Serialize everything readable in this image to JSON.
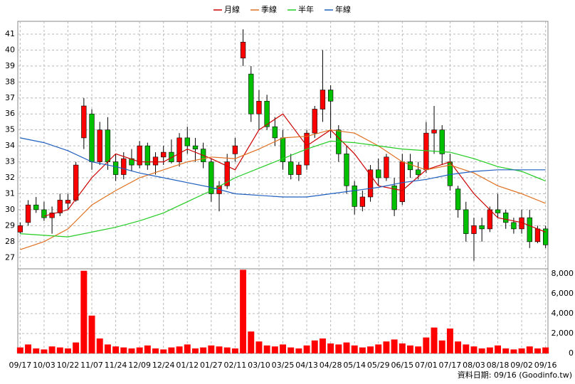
{
  "chart_data": {
    "type": "candlestick",
    "grid": true,
    "legend_position": "top",
    "up_color": "#ff0000",
    "down_color": "#00c000",
    "volume_color": "#ff0000",
    "footnote": "資料日期: 09/16  (Goodinfo.tw)",
    "xlim": [
      -0.3,
      66.3
    ],
    "xticks": [
      {
        "value": 0,
        "label": "09/17"
      },
      {
        "value": 3,
        "label": "10/03"
      },
      {
        "value": 6,
        "label": "10/22"
      },
      {
        "value": 9,
        "label": "11/07"
      },
      {
        "value": 12,
        "label": "11/24"
      },
      {
        "value": 15,
        "label": "12/09"
      },
      {
        "value": 18,
        "label": "12/24"
      },
      {
        "value": 21,
        "label": "01/12"
      },
      {
        "value": 24,
        "label": "01/27"
      },
      {
        "value": 27,
        "label": "02/11"
      },
      {
        "value": 30,
        "label": "03/10"
      },
      {
        "value": 33,
        "label": "03/25"
      },
      {
        "value": 36,
        "label": "04/13"
      },
      {
        "value": 39,
        "label": "04/28"
      },
      {
        "value": 42,
        "label": "05/14"
      },
      {
        "value": 45,
        "label": "05/29"
      },
      {
        "value": 48,
        "label": "06/15"
      },
      {
        "value": 51,
        "label": "07/01"
      },
      {
        "value": 54,
        "label": "07/17"
      },
      {
        "value": 57,
        "label": "08/03"
      },
      {
        "value": 60,
        "label": "08/18"
      },
      {
        "value": 63,
        "label": "09/02"
      },
      {
        "value": 66,
        "label": "09/16"
      }
    ],
    "ylim": [
      26.3,
      41.8
    ],
    "yticks": [
      27,
      28,
      29,
      30,
      31,
      32,
      33,
      34,
      35,
      36,
      37,
      38,
      39,
      40,
      41
    ],
    "y2lim": [
      0,
      8500
    ],
    "y2ticks": [
      0,
      {
        "value": 2000,
        "label": "2,000"
      },
      {
        "value": 4000,
        "label": "4,000"
      },
      {
        "value": 6000,
        "label": "6,000"
      },
      {
        "value": 8000,
        "label": "8,000"
      }
    ],
    "open": [
      28.6,
      29.2,
      30.3,
      30.0,
      29.5,
      29.8,
      30.4,
      30.6,
      34.5,
      36.0,
      33.0,
      35.0,
      33.0,
      32.2,
      33.2,
      32.8,
      34.0,
      32.8,
      33.3,
      33.6,
      33.0,
      34.5,
      34.0,
      33.8,
      33.0,
      31.0,
      31.5,
      33.5,
      39.5,
      38.5,
      36.0,
      36.8,
      35.2,
      34.5,
      33.0,
      32.2,
      32.8,
      34.8,
      36.3,
      37.5,
      35.0,
      33.5,
      31.5,
      30.2,
      30.8,
      32.5,
      32.0,
      31.5,
      30.5,
      33.0,
      32.5,
      32.5,
      34.8,
      35.0,
      33.0,
      31.3,
      30.0,
      28.5,
      29.0,
      28.8,
      30.0,
      29.8,
      29.2,
      28.8,
      29.5,
      28.0,
      28.8
    ],
    "high": [
      29.2,
      30.6,
      30.8,
      30.5,
      30.2,
      31.0,
      31.0,
      33.0,
      37.0,
      36.3,
      35.5,
      35.8,
      33.5,
      33.6,
      33.8,
      34.3,
      34.2,
      33.6,
      34.0,
      34.4,
      34.8,
      35.2,
      34.5,
      34.2,
      33.2,
      31.8,
      33.5,
      34.5,
      41.3,
      39.0,
      37.5,
      37.2,
      35.8,
      35.0,
      33.5,
      33.0,
      35.0,
      36.5,
      40.0,
      37.8,
      35.3,
      34.0,
      31.8,
      31.2,
      32.8,
      33.2,
      33.5,
      32.0,
      33.5,
      33.5,
      33.0,
      35.5,
      36.5,
      35.3,
      33.5,
      31.5,
      30.5,
      29.5,
      29.5,
      30.2,
      31.0,
      30.0,
      29.5,
      30.0,
      30.0,
      29.0,
      29.0
    ],
    "low": [
      28.5,
      29.0,
      29.8,
      29.3,
      28.5,
      29.6,
      30.0,
      30.5,
      33.8,
      32.5,
      32.8,
      32.5,
      31.8,
      31.9,
      32.4,
      32.6,
      32.5,
      32.2,
      32.8,
      32.9,
      32.7,
      33.5,
      33.0,
      32.6,
      30.5,
      29.9,
      31.3,
      33.0,
      39.0,
      35.5,
      35.0,
      35.0,
      34.0,
      32.5,
      31.9,
      31.8,
      32.5,
      34.5,
      35.5,
      34.5,
      33.0,
      31.0,
      29.7,
      29.9,
      30.5,
      31.5,
      31.8,
      29.6,
      30.3,
      32.0,
      31.9,
      32.3,
      33.5,
      32.8,
      31.2,
      29.5,
      28.0,
      26.8,
      28.0,
      28.6,
      29.5,
      28.8,
      28.5,
      28.5,
      27.6,
      27.9,
      27.6
    ],
    "close": [
      29.0,
      30.3,
      30.0,
      29.5,
      29.8,
      30.6,
      30.6,
      32.8,
      36.5,
      33.0,
      35.0,
      33.0,
      32.2,
      33.2,
      32.8,
      34.0,
      32.8,
      33.3,
      33.6,
      33.0,
      34.5,
      34.0,
      33.8,
      33.0,
      31.0,
      31.5,
      33.0,
      34.0,
      40.5,
      36.0,
      36.8,
      35.2,
      34.5,
      33.0,
      32.2,
      32.8,
      34.8,
      36.3,
      37.5,
      36.8,
      33.5,
      31.5,
      30.2,
      30.8,
      32.5,
      32.0,
      33.3,
      30.0,
      33.0,
      32.5,
      32.2,
      34.8,
      35.0,
      33.5,
      31.5,
      30.0,
      28.5,
      29.0,
      28.8,
      30.0,
      29.8,
      29.2,
      28.8,
      29.5,
      28.0,
      28.8,
      27.8
    ],
    "volume": [
      600,
      900,
      500,
      400,
      700,
      600,
      500,
      1100,
      8300,
      3800,
      1500,
      900,
      700,
      600,
      500,
      600,
      800,
      500,
      400,
      600,
      700,
      900,
      500,
      600,
      800,
      700,
      600,
      500,
      8400,
      2200,
      1200,
      800,
      700,
      900,
      600,
      500,
      800,
      1300,
      1500,
      1000,
      900,
      1100,
      800,
      600,
      700,
      900,
      1200,
      1400,
      1000,
      800,
      700,
      1600,
      2600,
      1300,
      2500,
      1200,
      900,
      700,
      500,
      600,
      800,
      500,
      400,
      500,
      700,
      500,
      600
    ],
    "ma_x": [
      0,
      3,
      6,
      9,
      12,
      15,
      18,
      21,
      24,
      27,
      30,
      33,
      36,
      39,
      42,
      45,
      48,
      51,
      54,
      57,
      60,
      63,
      66
    ],
    "series": [
      {
        "name": "月線",
        "color": "#cc0000",
        "values": [
          null,
          29.6,
          30.0,
          32.0,
          33.5,
          33.0,
          33.0,
          33.8,
          33.2,
          32.5,
          35.0,
          36.0,
          34.0,
          35.0,
          33.5,
          31.5,
          31.2,
          32.5,
          33.0,
          31.0,
          29.5,
          29.2,
          28.6
        ]
      },
      {
        "name": "季線",
        "color": "#e07020",
        "values": [
          27.5,
          28.0,
          28.8,
          30.3,
          31.2,
          32.0,
          32.5,
          33.0,
          33.3,
          33.2,
          33.8,
          34.5,
          34.6,
          35.0,
          34.8,
          34.0,
          33.0,
          32.5,
          32.8,
          32.3,
          31.5,
          31.0,
          30.4
        ]
      },
      {
        "name": "半年",
        "color": "#22cc22",
        "values": [
          28.5,
          28.4,
          28.3,
          28.6,
          28.9,
          29.3,
          29.8,
          30.5,
          31.2,
          32.0,
          32.6,
          33.2,
          33.8,
          34.3,
          34.2,
          34.0,
          33.8,
          33.7,
          33.6,
          33.2,
          32.7,
          32.4,
          31.8
        ]
      },
      {
        "name": "年線",
        "color": "#1f5fbf",
        "values": [
          34.5,
          34.2,
          33.7,
          33.0,
          32.7,
          32.3,
          32.0,
          31.7,
          31.4,
          31.0,
          30.9,
          30.8,
          30.8,
          31.0,
          31.2,
          31.4,
          31.7,
          31.9,
          32.2,
          32.4,
          32.5,
          32.5,
          32.5
        ]
      }
    ]
  }
}
